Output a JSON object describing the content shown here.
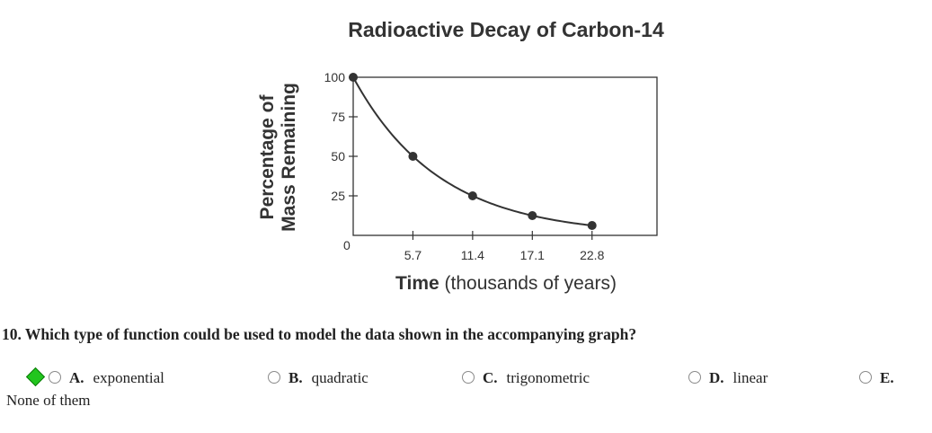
{
  "chart_data": {
    "type": "line",
    "title": "Radioactive Decay of Carbon-14",
    "ylabel_line1": "Percentage of",
    "ylabel_line2": "Mass Remaining",
    "xlabel_bold": "Time",
    "xlabel_rest": " (thousands of years)",
    "x_ticks": [
      0,
      5.7,
      11.4,
      17.1,
      22.8
    ],
    "x_tick_labels": [
      "0",
      "5.7",
      "11.4",
      "17.1",
      "22.8"
    ],
    "y_ticks": [
      25,
      50,
      75,
      100
    ],
    "y_tick_labels": [
      "25",
      "50",
      "75",
      "100"
    ],
    "origin_label": "0",
    "xlim": [
      0,
      29
    ],
    "ylim": [
      0,
      100
    ],
    "series": [
      {
        "x": [
          0,
          5.7,
          11.4,
          17.1,
          22.8
        ],
        "values": [
          100,
          50,
          25,
          12.5,
          6.25
        ]
      }
    ],
    "grid": false
  },
  "question": {
    "text": "10. Which type of function could be used to model the data shown in the accompanying graph?"
  },
  "choices": [
    {
      "letter": "A.",
      "text": "exponential"
    },
    {
      "letter": "B.",
      "text": "quadratic"
    },
    {
      "letter": "C.",
      "text": "trigonometric"
    },
    {
      "letter": "D.",
      "text": "linear"
    },
    {
      "letter": "E.",
      "text": ""
    }
  ],
  "choice_e_wrap": "None of them",
  "correct_indicator_color": "#22c51e"
}
